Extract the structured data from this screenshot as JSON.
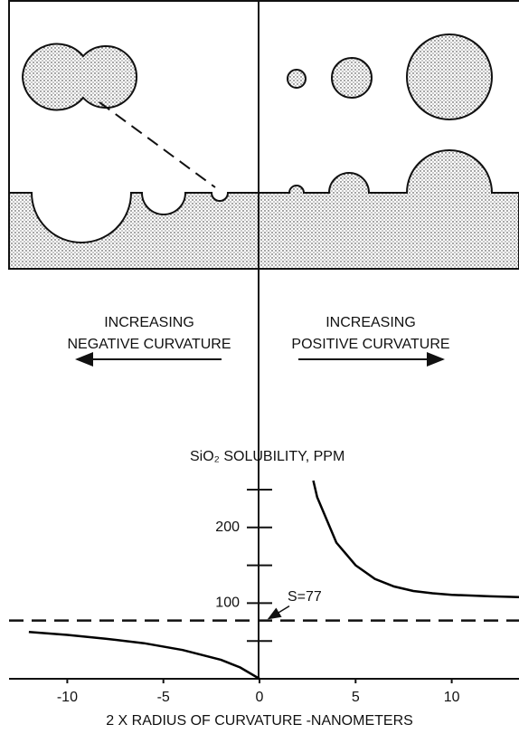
{
  "chart_data": {
    "type": "line",
    "ylabel": "SiO₂  SOLUBILITY, PPM",
    "xlabel": "2 X RADIUS OF CURVATURE -NANOMETERS",
    "annotations": [
      {
        "lines": [
          "INCREASING",
          "NEGATIVE CURVATURE"
        ],
        "direction": "left"
      },
      {
        "lines": [
          "INCREASING",
          "POSITIVE CURVATURE"
        ],
        "direction": "right"
      }
    ],
    "hline": {
      "value": 77,
      "label": "S=77"
    },
    "xlim": [
      -13.5,
      13.5
    ],
    "ylim": [
      0,
      250
    ],
    "xticks": [
      -10,
      -5,
      0,
      5,
      10
    ],
    "yticks": [
      100,
      200
    ],
    "yminor": [
      50,
      150,
      250
    ],
    "series": [
      {
        "color": "#000000",
        "x": [
          2.8,
          3,
          4,
          5,
          6,
          7,
          8,
          9,
          10,
          12,
          13.5
        ],
        "values": [
          262,
          240,
          180,
          150,
          132,
          122,
          116,
          113,
          111,
          109,
          108
        ]
      },
      {
        "color": "#000000",
        "x": [
          -12,
          -10,
          -8,
          -6,
          -4,
          -2,
          -1,
          0
        ],
        "values": [
          62,
          58,
          53,
          47,
          38,
          25,
          15,
          0
        ]
      }
    ]
  }
}
